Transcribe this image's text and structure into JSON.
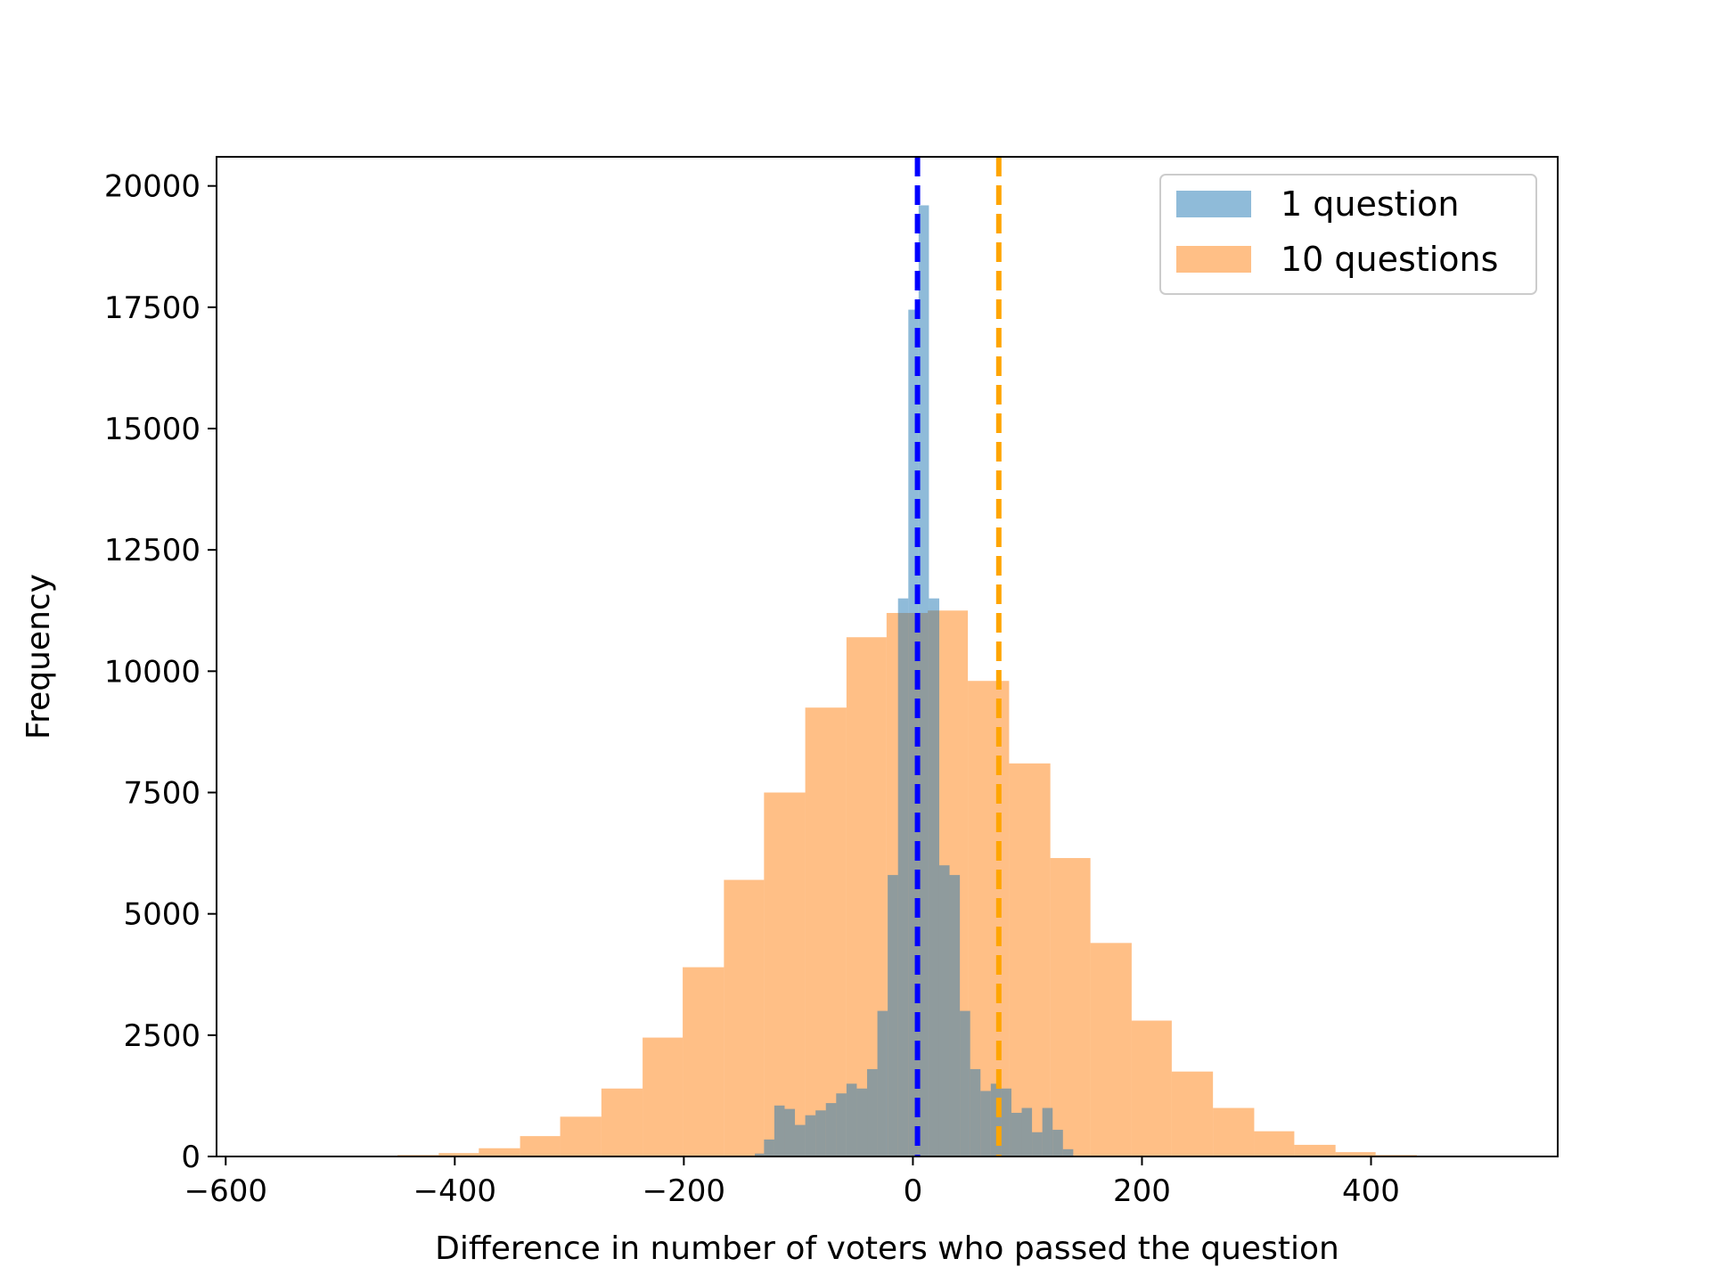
{
  "chart_data": {
    "type": "bar",
    "title": "",
    "xlabel": "Difference in number of voters who passed the question",
    "ylabel": "Frequency",
    "xlim": [
      -608,
      563
    ],
    "ylim": [
      0,
      20600
    ],
    "xticks": [
      -600,
      -400,
      -200,
      0,
      200,
      400
    ],
    "yticks": [
      0,
      2500,
      5000,
      7500,
      10000,
      12500,
      15000,
      17500,
      20000
    ],
    "grid": false,
    "legend_position": "top-right",
    "series": [
      {
        "name": "1 question",
        "color": "#1f77b4",
        "opacity": 0.5,
        "bins": [
          [
            -138,
            -130,
            60
          ],
          [
            -130,
            -121,
            350
          ],
          [
            -121,
            -112,
            1050
          ],
          [
            -112,
            -103,
            980
          ],
          [
            -103,
            -94,
            650
          ],
          [
            -94,
            -85,
            850
          ],
          [
            -85,
            -76,
            950
          ],
          [
            -76,
            -67,
            1100
          ],
          [
            -67,
            -58,
            1300
          ],
          [
            -58,
            -49,
            1500
          ],
          [
            -49,
            -40,
            1400
          ],
          [
            -40,
            -31,
            1800
          ],
          [
            -31,
            -22,
            3000
          ],
          [
            -22,
            -13,
            5800
          ],
          [
            -13,
            -4,
            11500
          ],
          [
            -4,
            5,
            17450
          ],
          [
            5,
            14,
            19600
          ],
          [
            14,
            23,
            11500
          ],
          [
            23,
            32,
            6000
          ],
          [
            32,
            41,
            5800
          ],
          [
            41,
            50,
            3000
          ],
          [
            50,
            59,
            1800
          ],
          [
            59,
            68,
            1350
          ],
          [
            68,
            77,
            1500
          ],
          [
            77,
            86,
            1400
          ],
          [
            86,
            95,
            900
          ],
          [
            95,
            104,
            1000
          ],
          [
            104,
            113,
            500
          ],
          [
            113,
            122,
            1000
          ],
          [
            122,
            131,
            550
          ],
          [
            131,
            140,
            150
          ]
        ]
      },
      {
        "name": "10 questions",
        "color": "#ff7f0e",
        "opacity": 0.5,
        "bins": [
          [
            -450,
            -414,
            30
          ],
          [
            -414,
            -379,
            70
          ],
          [
            -379,
            -343,
            170
          ],
          [
            -343,
            -308,
            420
          ],
          [
            -308,
            -272,
            820
          ],
          [
            -272,
            -236,
            1400
          ],
          [
            -236,
            -201,
            2450
          ],
          [
            -201,
            -165,
            3900
          ],
          [
            -165,
            -130,
            5700
          ],
          [
            -130,
            -94,
            7500
          ],
          [
            -94,
            -58,
            9250
          ],
          [
            -58,
            -23,
            10700
          ],
          [
            -23,
            13,
            11200
          ],
          [
            13,
            48,
            11250
          ],
          [
            48,
            84,
            9800
          ],
          [
            84,
            120,
            8100
          ],
          [
            120,
            155,
            6150
          ],
          [
            155,
            191,
            4400
          ],
          [
            191,
            226,
            2800
          ],
          [
            226,
            262,
            1750
          ],
          [
            262,
            298,
            1000
          ],
          [
            298,
            333,
            520
          ],
          [
            333,
            369,
            240
          ],
          [
            369,
            404,
            90
          ],
          [
            404,
            440,
            30
          ]
        ]
      }
    ],
    "vlines": [
      {
        "x": 4,
        "color": "#0000ff",
        "style": "dashed"
      },
      {
        "x": 75,
        "color": "#ffa500",
        "style": "dashed"
      }
    ]
  }
}
